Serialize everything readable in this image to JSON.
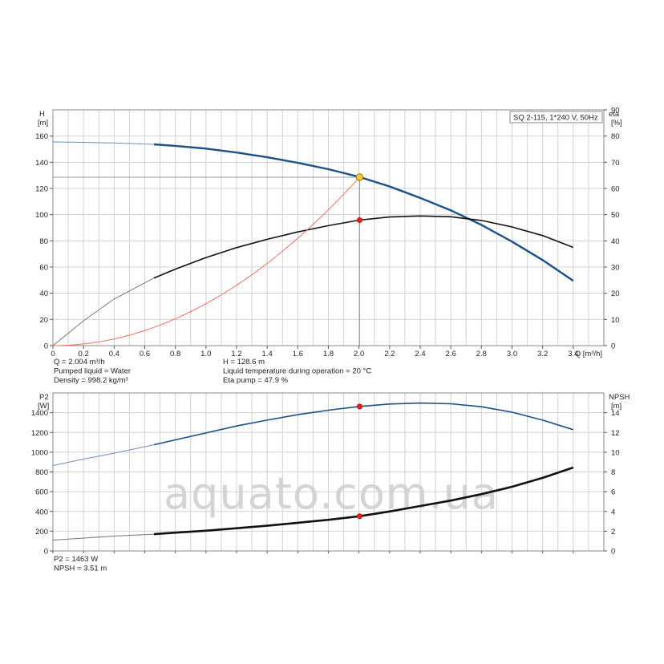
{
  "watermark": "aquato.com.ua",
  "chart_data": [
    {
      "type": "line",
      "title": "SQ 2-115, 1*240 V, 50Hz",
      "xlabel": "Q [m³/h]",
      "xlim": [
        0,
        3.6
      ],
      "xticks": [
        0,
        0.2,
        0.4,
        0.6,
        0.8,
        1.0,
        1.2,
        1.4,
        1.6,
        1.8,
        2.0,
        2.2,
        2.4,
        2.6,
        2.8,
        3.0,
        3.2,
        3.4
      ],
      "x_tick_labels": [
        "0",
        "0.2",
        "0.4",
        "0.6",
        "0.8",
        "1.0",
        "1.2",
        "1.4",
        "1.6",
        "1.8",
        "2.0",
        "2.2",
        "2.4",
        "2.6",
        "2.8",
        "3.0",
        "3.2",
        "3.4"
      ],
      "ylabel_left": "H",
      "ylabel_left_unit": "[m]",
      "ylim_left": [
        0,
        180
      ],
      "yticks_left": [
        0,
        20,
        40,
        60,
        80,
        100,
        120,
        140,
        160
      ],
      "ylabel_right": "eta",
      "ylabel_right_unit": "[%]",
      "ylim_right": [
        0,
        90
      ],
      "yticks_right": [
        0,
        10,
        20,
        30,
        40,
        50,
        60,
        70,
        80,
        90
      ],
      "grid": true,
      "series": [
        {
          "axis": "left",
          "color": "#1a4f8a",
          "x": [
            0,
            0.2,
            0.4,
            0.66,
            0.8,
            1.0,
            1.2,
            1.4,
            1.6,
            1.8,
            2.0,
            2.2,
            2.4,
            2.6,
            2.8,
            3.0,
            3.2,
            3.4
          ],
          "values": [
            155.5,
            155.2,
            154.7,
            153.7,
            152.5,
            150.4,
            147.4,
            143.8,
            139.6,
            134.7,
            128.9,
            121.5,
            112.8,
            103.3,
            92.2,
            79.4,
            65.3,
            49.5
          ]
        },
        {
          "axis": "right",
          "color": "#111111",
          "x": [
            0,
            0.2,
            0.4,
            0.66,
            0.8,
            1.0,
            1.2,
            1.4,
            1.6,
            1.8,
            2.0,
            2.2,
            2.4,
            2.6,
            2.8,
            3.0,
            3.2,
            3.4
          ],
          "values": [
            0,
            9.5,
            17.8,
            25.8,
            29.2,
            33.6,
            37.4,
            40.6,
            43.4,
            45.8,
            47.9,
            49.1,
            49.5,
            49.2,
            47.8,
            45.3,
            42.0,
            37.5
          ]
        },
        {
          "axis": "left",
          "color": "#f07060",
          "x": [
            0,
            0.4,
            0.8,
            1.2,
            1.6,
            2.004
          ],
          "values": [
            0,
            5,
            20,
            45,
            80,
            128.6
          ]
        }
      ],
      "operating_point": {
        "q": 2.004,
        "h": 128.6,
        "eta": 47.9
      },
      "info_left": [
        "Q = 2.004 m³/h",
        "Pumped liquid = Water",
        "Density = 998.2 kg/m³"
      ],
      "info_right": [
        "H = 128.6 m",
        "Liquid temperature during operation = 20 °C",
        "Eta pump = 47.9 %"
      ]
    },
    {
      "type": "line",
      "xlim": [
        0,
        3.6
      ],
      "ylabel_left": "P2",
      "ylabel_left_unit": "[W]",
      "ylim_left": [
        0,
        1600
      ],
      "yticks_left": [
        0,
        200,
        400,
        600,
        800,
        1000,
        1200,
        1400
      ],
      "ylabel_right": "NPSH",
      "ylabel_right_unit": "[m]",
      "ylim_right": [
        0,
        16
      ],
      "yticks_right": [
        0,
        2,
        4,
        6,
        8,
        10,
        12,
        14
      ],
      "grid": true,
      "series": [
        {
          "axis": "left",
          "color": "#1a4f8a",
          "x": [
            0,
            0.2,
            0.4,
            0.66,
            0.8,
            1.0,
            1.2,
            1.4,
            1.6,
            1.8,
            2.0,
            2.2,
            2.4,
            2.6,
            2.8,
            3.0,
            3.2,
            3.4
          ],
          "values": [
            865,
            930,
            990,
            1075,
            1125,
            1195,
            1265,
            1325,
            1380,
            1425,
            1463,
            1488,
            1498,
            1490,
            1460,
            1405,
            1325,
            1228
          ]
        },
        {
          "axis": "right",
          "color": "#111111",
          "x": [
            0,
            0.2,
            0.4,
            0.66,
            0.8,
            1.0,
            1.2,
            1.4,
            1.6,
            1.8,
            2.0,
            2.2,
            2.4,
            2.6,
            2.8,
            3.0,
            3.2,
            3.4
          ],
          "values": [
            1.1,
            1.3,
            1.5,
            1.7,
            1.85,
            2.05,
            2.3,
            2.55,
            2.85,
            3.15,
            3.51,
            4.0,
            4.55,
            5.1,
            5.75,
            6.5,
            7.4,
            8.45
          ]
        }
      ],
      "operating_point": {
        "p2": 1463,
        "npsh": 3.51
      },
      "info_left": [
        "P2 = 1463 W",
        "NPSH = 3.51 m"
      ]
    }
  ]
}
